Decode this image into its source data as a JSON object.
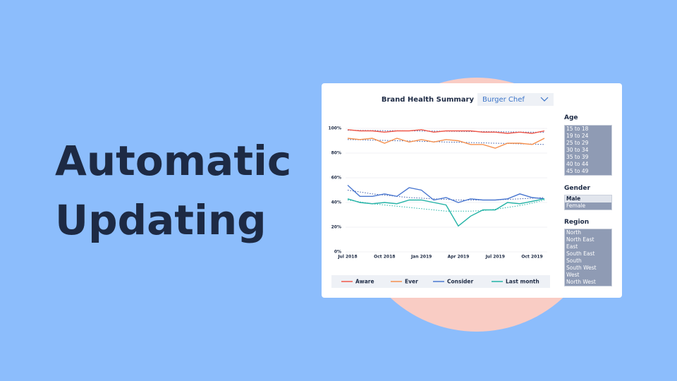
{
  "headline": {
    "line1": "Automatic",
    "line2": "Updating"
  },
  "dashboard": {
    "title": "Brand Health Summary",
    "brand_select": "Burger Chef"
  },
  "filters": [
    {
      "label": "Age",
      "options": [
        "15 to 18",
        "19 to 24",
        "25 to 29",
        "30 to 34",
        "35 to 39",
        "40 to 44",
        "45 to 49"
      ]
    },
    {
      "label": "Gender",
      "options": [
        "Male",
        "Female"
      ]
    },
    {
      "label": "Region",
      "options": [
        "North",
        "North East",
        "East",
        "South East",
        "South",
        "South West",
        "West",
        "North West"
      ]
    }
  ],
  "chart_data": {
    "type": "line",
    "categories": [
      "Jul 2018",
      null,
      null,
      "Oct 2018",
      null,
      null,
      "Jan 2019",
      null,
      null,
      "Apr 2019",
      null,
      null,
      "Jul 2019",
      null,
      null,
      "Oct 2019",
      null
    ],
    "ylim": [
      0,
      100
    ],
    "yticks": [
      {
        "value": 0,
        "label": "0%"
      },
      {
        "value": 20,
        "label": "20%"
      },
      {
        "value": 40,
        "label": "40%"
      },
      {
        "value": 60,
        "label": "60%"
      },
      {
        "value": 80,
        "label": "80%"
      },
      {
        "value": 100,
        "label": "100%"
      }
    ],
    "grid": true,
    "legend": "bottom",
    "series": [
      {
        "name": "Aware",
        "color": "#f0584a",
        "values": [
          99,
          98,
          98,
          97,
          98,
          98,
          99,
          97,
          98,
          98,
          98,
          97,
          97,
          96,
          97,
          96,
          98
        ],
        "trend": [
          98.5,
          98.4,
          98.3,
          98.2,
          98.1,
          98,
          97.9,
          97.8,
          97.7,
          97.6,
          97.5,
          97.4,
          97.3,
          97.2,
          97.1,
          97,
          96.9
        ]
      },
      {
        "name": "Ever",
        "color": "#f5904f",
        "values": [
          92,
          91,
          92,
          88,
          92,
          89,
          91,
          89,
          91,
          90,
          87,
          87,
          84,
          88,
          88,
          87,
          92
        ],
        "trend": [
          91,
          90.8,
          90.5,
          90.3,
          90,
          89.8,
          89.5,
          89.3,
          89,
          88.8,
          88.5,
          88.3,
          88,
          87.8,
          87.5,
          87.3,
          87
        ]
      },
      {
        "name": "Consider",
        "color": "#4a77d0",
        "values": [
          54,
          45,
          45,
          47,
          45,
          52,
          50,
          42,
          44,
          40,
          43,
          42,
          42,
          43,
          47,
          44,
          43
        ],
        "trend": [
          50,
          48.5,
          47,
          46,
          45,
          44,
          43.5,
          43,
          42.5,
          42,
          42,
          42,
          42,
          42.5,
          43,
          43.5,
          44
        ]
      },
      {
        "name": "Last month",
        "color": "#22b3a6",
        "values": [
          43,
          40,
          39,
          40,
          39,
          42,
          42,
          40,
          38,
          21,
          29,
          34,
          34,
          40,
          39,
          41,
          43
        ],
        "trend": [
          42,
          40.5,
          39,
          38,
          37,
          36,
          35,
          34,
          33,
          33,
          33,
          33.5,
          34.5,
          36,
          37.5,
          39.5,
          42
        ]
      }
    ]
  }
}
